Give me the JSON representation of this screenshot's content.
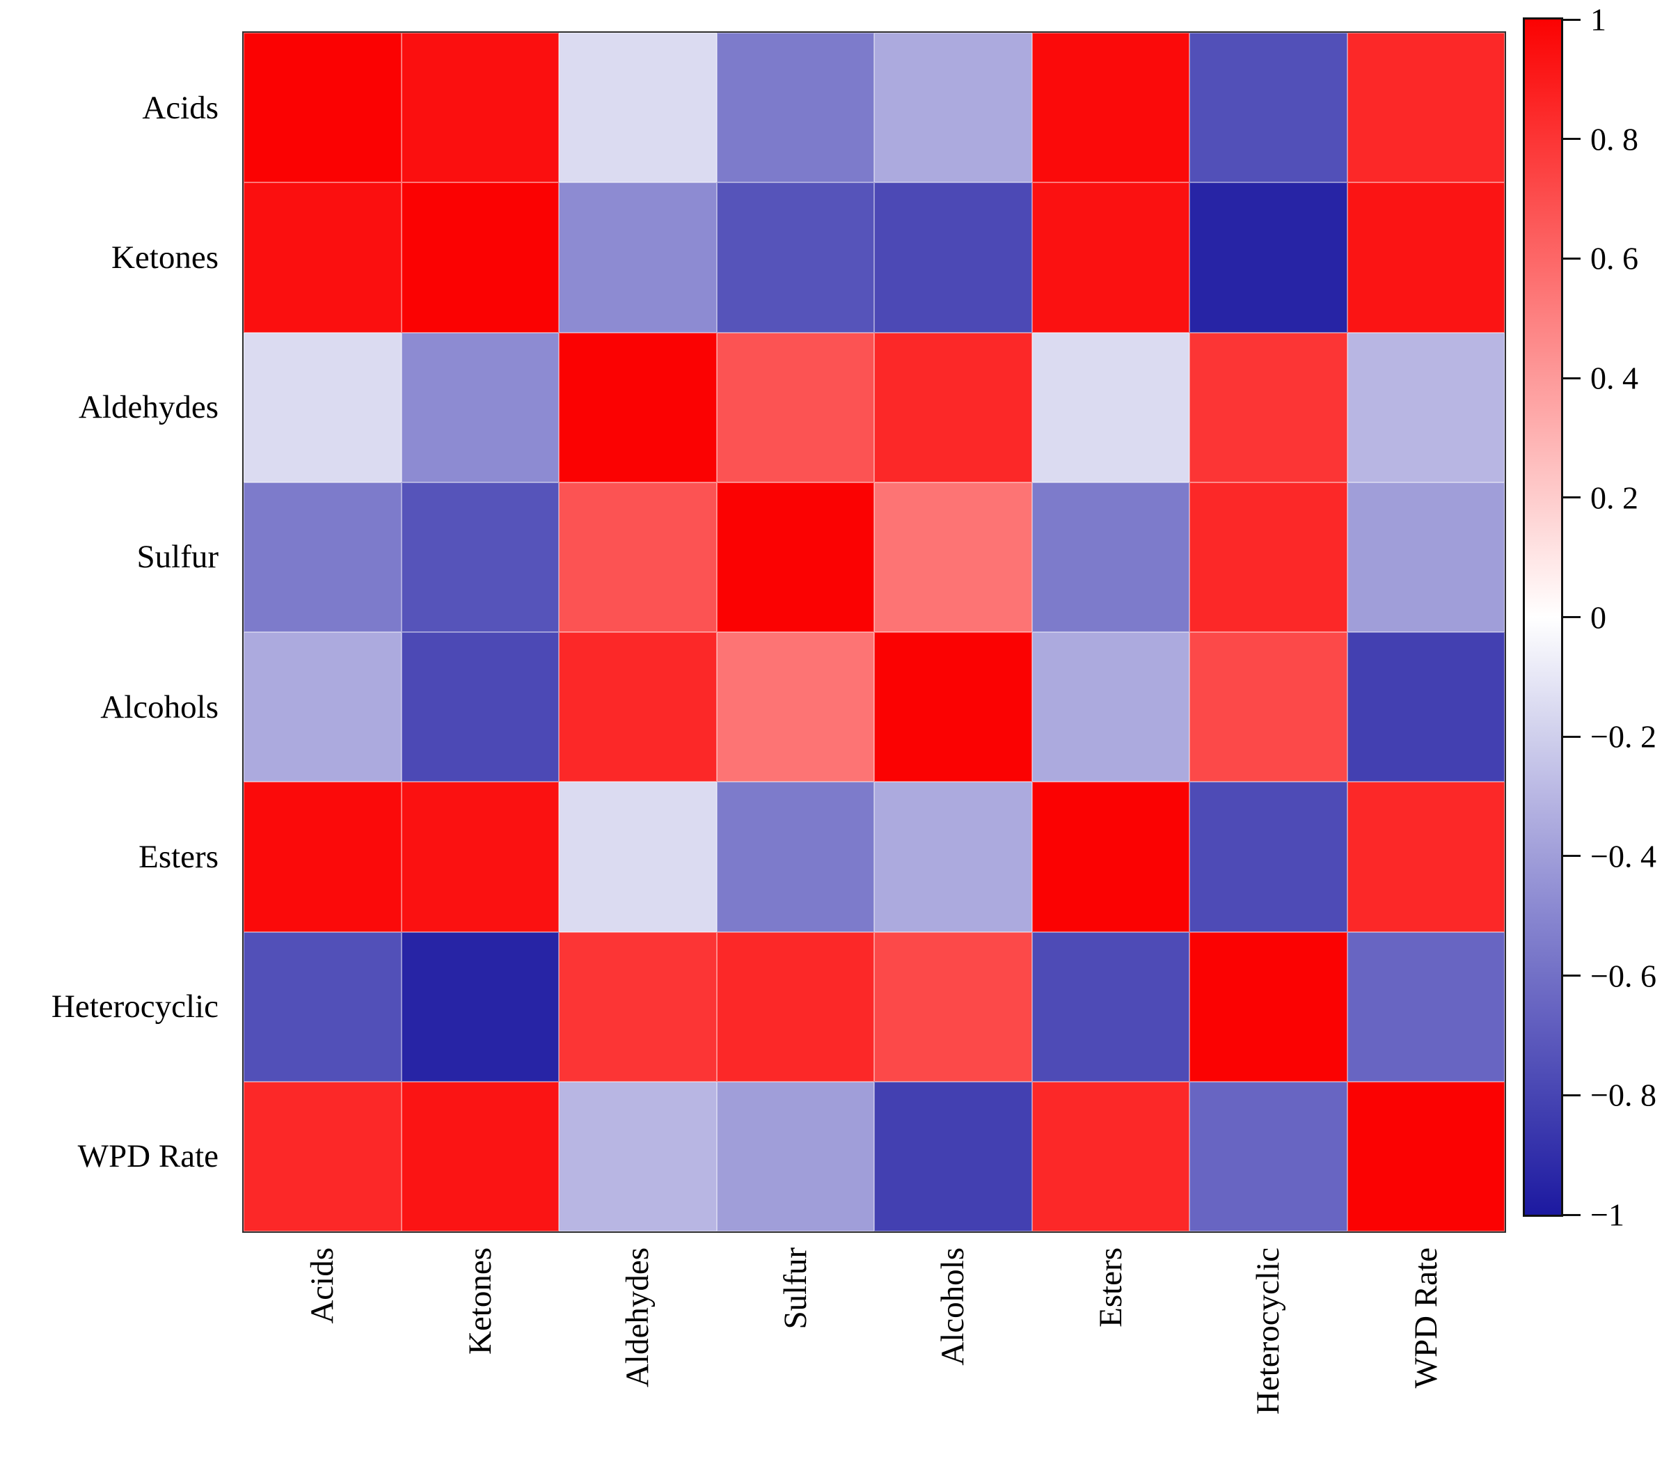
{
  "figure": {
    "background": "#ffffff",
    "frame_color": "#2e2e2e",
    "tick_color": "#111111"
  },
  "chart_data": {
    "type": "heatmap",
    "title": "",
    "xlabel": "",
    "ylabel": "",
    "categories": [
      "Acids",
      "Ketones",
      "Aldehydes",
      "Sulfur",
      "Alcohols",
      "Esters",
      "Heterocyclic",
      "WPD Rate"
    ],
    "matrix": [
      [
        1.0,
        0.95,
        -0.15,
        -0.55,
        -0.35,
        0.97,
        -0.75,
        0.85
      ],
      [
        0.95,
        1.0,
        -0.48,
        -0.73,
        -0.78,
        0.94,
        -0.95,
        0.93
      ],
      [
        -0.15,
        -0.48,
        1.0,
        0.68,
        0.85,
        -0.15,
        0.8,
        -0.3
      ],
      [
        -0.55,
        -0.73,
        0.68,
        1.0,
        0.55,
        -0.55,
        0.85,
        -0.4
      ],
      [
        -0.35,
        -0.78,
        0.85,
        0.55,
        1.0,
        -0.35,
        0.72,
        -0.82
      ],
      [
        0.97,
        0.94,
        -0.15,
        -0.55,
        -0.35,
        1.0,
        -0.77,
        0.85
      ],
      [
        -0.75,
        -0.95,
        0.8,
        0.85,
        0.72,
        -0.77,
        1.0,
        -0.65
      ],
      [
        0.85,
        0.93,
        -0.3,
        -0.4,
        -0.82,
        0.85,
        -0.65,
        1.0
      ]
    ],
    "value_range": [
      -1,
      1
    ],
    "grid": false,
    "legend_position": "right",
    "colorbar": {
      "tick_values": [
        1,
        0.8,
        0.6,
        0.4,
        0.2,
        0,
        -0.2,
        -0.4,
        -0.6,
        -0.8,
        -1
      ],
      "tick_labels": [
        "1",
        "0. 8",
        "0. 6",
        "0. 4",
        "0. 2",
        "0",
        "−0. 2",
        "−0. 4",
        "−0. 6",
        "−0. 8",
        "−1"
      ],
      "colors": {
        "positive_max": "#fb0202",
        "zero": "#ffffff",
        "negative_mid": "#8886d0",
        "negative_max": "#1c19a0"
      }
    }
  }
}
